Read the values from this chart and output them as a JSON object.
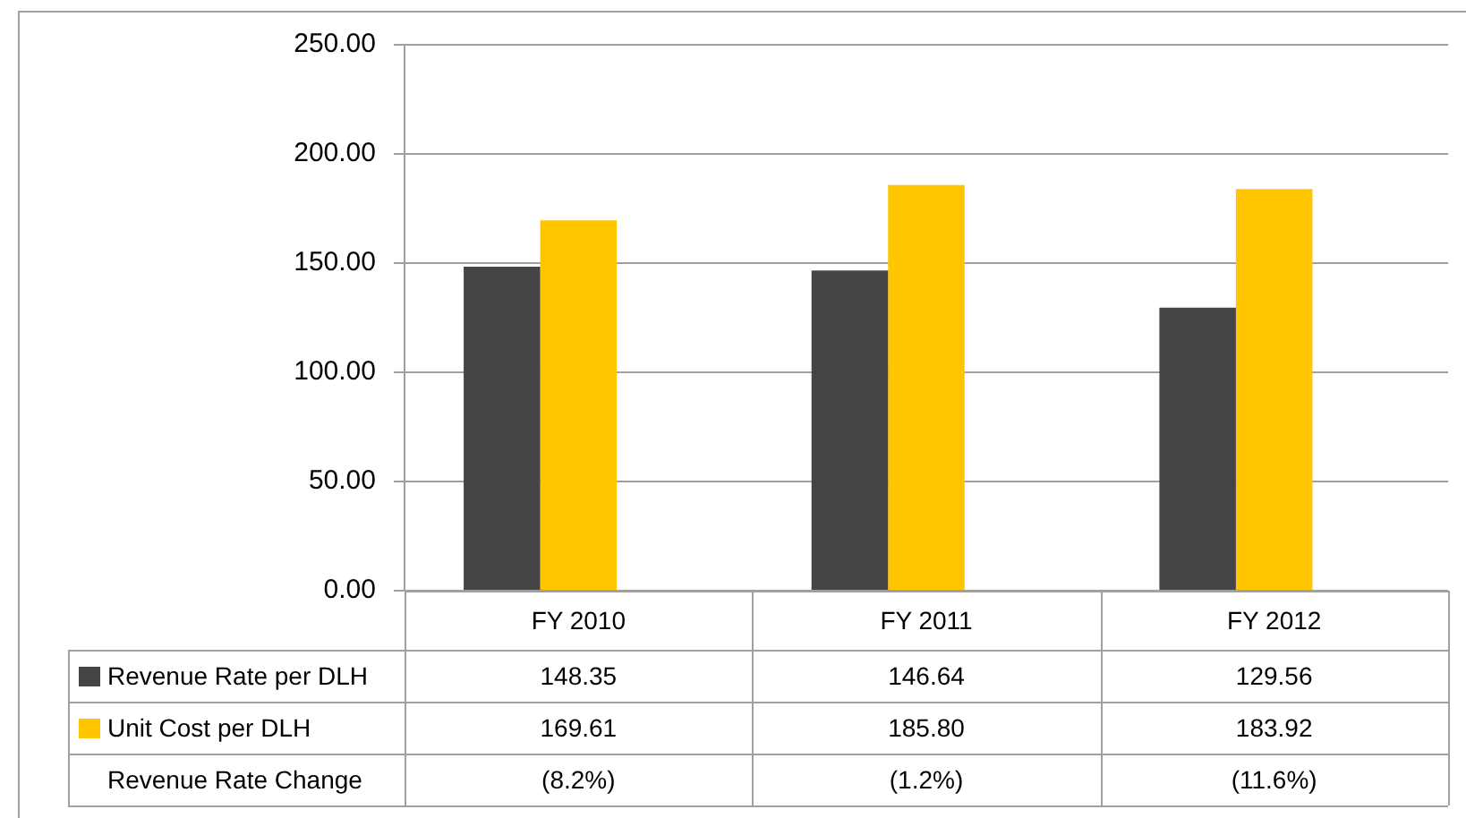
{
  "chart_data": {
    "type": "bar",
    "categories": [
      "FY 2010",
      "FY 2011",
      "FY 2012"
    ],
    "series": [
      {
        "name": "Revenue Rate per DLH",
        "color": "#444444",
        "values": [
          148.35,
          146.64,
          129.56
        ],
        "value_labels": [
          "148.35",
          "146.64",
          "129.56"
        ]
      },
      {
        "name": "Unit Cost per DLH",
        "color": "#ffc600",
        "values": [
          169.61,
          185.8,
          183.92
        ],
        "value_labels": [
          "169.61",
          "185.80",
          "183.92"
        ]
      }
    ],
    "ylim": [
      0,
      250
    ],
    "yticks": [
      {
        "value": 0,
        "label": "0.00"
      },
      {
        "value": 50,
        "label": "50.00"
      },
      {
        "value": 100,
        "label": "100.00"
      },
      {
        "value": 150,
        "label": "150.00"
      },
      {
        "value": 200,
        "label": "200.00"
      },
      {
        "value": 250,
        "label": "250.00"
      }
    ],
    "grid": "y",
    "legend": "bottom",
    "annotations": [
      "Revenue Rate Change",
      "(8.2%)",
      "(1.2%)",
      "(11.6%)"
    ]
  }
}
